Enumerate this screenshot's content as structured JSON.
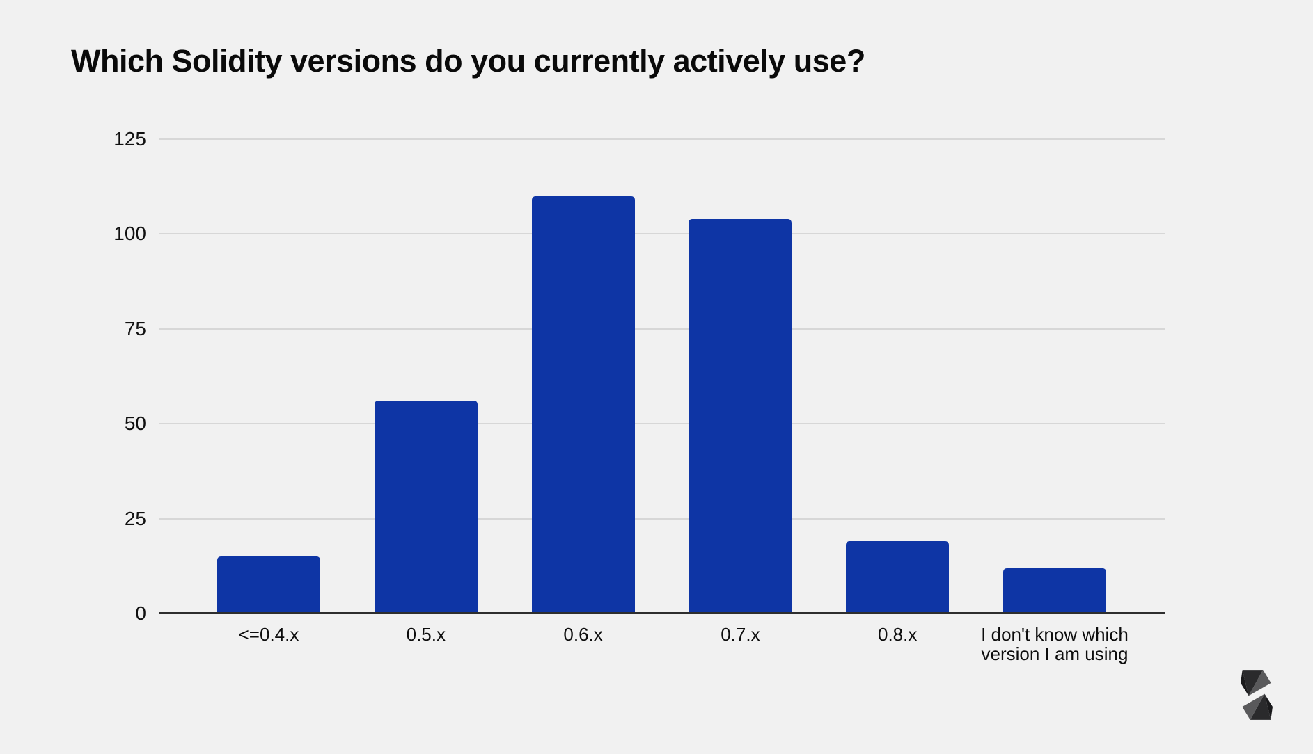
{
  "page": {
    "background_color": "#f1f1f1"
  },
  "chart_data": {
    "type": "bar",
    "title": "Which Solidity versions do you currently actively use?",
    "categories": [
      "<=0.4.x",
      "0.5.x",
      "0.6.x",
      "0.7.x",
      "0.8.x",
      "I don't know which version I am using"
    ],
    "values": [
      15,
      56,
      110,
      104,
      19,
      12
    ],
    "xlabel": "",
    "ylabel": "",
    "ylim": [
      0,
      125
    ],
    "yticks": [
      0,
      25,
      50,
      75,
      100,
      125
    ],
    "grid": true,
    "legend": "none",
    "bar_color": "#0e35a5",
    "gridline_color": "#d7d7d7",
    "axis_line_color": "#2e2e2e"
  },
  "branding": {
    "logo_name": "solidity-logo"
  }
}
